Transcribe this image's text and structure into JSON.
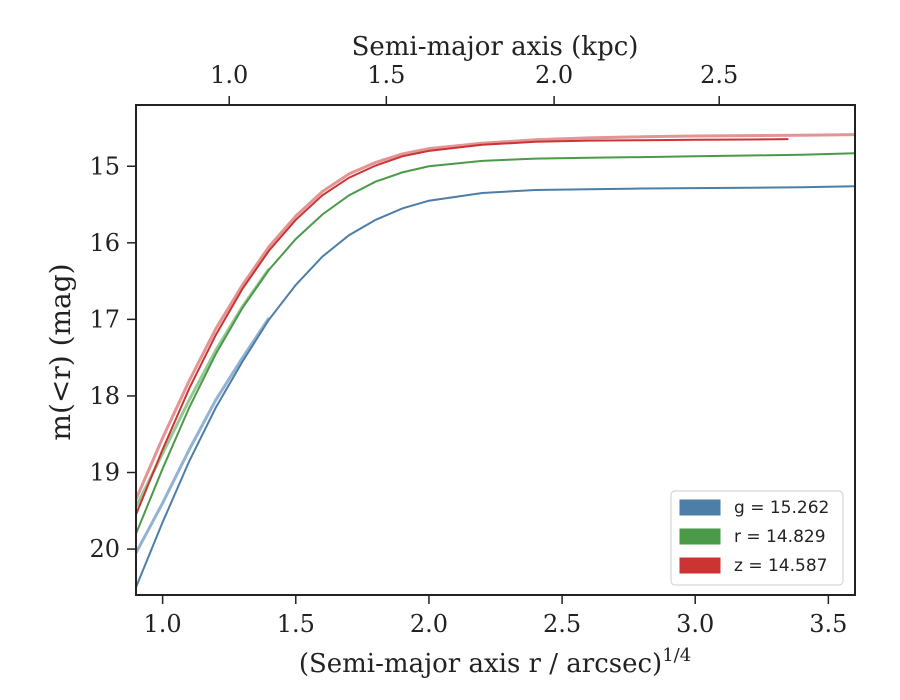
{
  "chart_data": {
    "type": "line",
    "xlabel": "(Semi-major axis r / arcsec)",
    "xlabel_superscript": "1/4",
    "x2label": "Semi-major axis (kpc)",
    "ylabel": "m(<r) (mag)",
    "xlim": [
      0.9,
      3.6
    ],
    "ylim": [
      20.6,
      14.2
    ],
    "y_inverted": true,
    "x2_ticks": [
      {
        "x": 1.25,
        "label": "1.0"
      },
      {
        "x": 1.84,
        "label": "1.5"
      },
      {
        "x": 2.47,
        "label": "2.0"
      },
      {
        "x": 3.09,
        "label": "2.5"
      }
    ],
    "xticks": [
      "1.0",
      "1.5",
      "2.0",
      "2.5",
      "3.0",
      "3.5"
    ],
    "yticks": [
      "15",
      "16",
      "17",
      "18",
      "19",
      "20"
    ],
    "legend_position": "lower-right",
    "grid": false,
    "series": [
      {
        "name": "g = 15.262",
        "color": "#4c7ea8",
        "band_color": "#88aacc",
        "x": [
          0.9,
          1.0,
          1.1,
          1.2,
          1.3,
          1.4,
          1.5,
          1.6,
          1.7,
          1.8,
          1.9,
          2.0,
          2.2,
          2.4,
          2.6,
          2.8,
          3.0,
          3.2,
          3.4,
          3.6
        ],
        "y": [
          20.5,
          19.65,
          18.85,
          18.15,
          17.55,
          17.0,
          16.55,
          16.18,
          15.9,
          15.7,
          15.55,
          15.45,
          15.35,
          15.31,
          15.3,
          15.29,
          15.285,
          15.28,
          15.275,
          15.262
        ],
        "band_x": [
          0.9,
          1.0,
          1.1,
          1.2,
          1.3,
          1.4
        ],
        "band_y": [
          20.05,
          19.4,
          18.7,
          18.05,
          17.5,
          16.98
        ]
      },
      {
        "name": "r = 14.829",
        "color": "#4a9a4a",
        "band_color": "#88c488",
        "x": [
          0.9,
          1.0,
          1.1,
          1.2,
          1.3,
          1.4,
          1.5,
          1.6,
          1.7,
          1.8,
          1.9,
          2.0,
          2.2,
          2.4,
          2.6,
          2.8,
          3.0,
          3.2,
          3.4,
          3.6
        ],
        "y": [
          19.8,
          18.95,
          18.15,
          17.45,
          16.85,
          16.35,
          15.95,
          15.63,
          15.38,
          15.2,
          15.08,
          15.0,
          14.93,
          14.9,
          14.89,
          14.88,
          14.87,
          14.86,
          14.85,
          14.829
        ],
        "band_x": [
          0.9,
          1.0,
          1.1,
          1.2,
          1.3,
          1.4
        ],
        "band_y": [
          19.45,
          18.75,
          18.05,
          17.4,
          16.83,
          16.34
        ]
      },
      {
        "name": "z = 14.587",
        "color": "#cc3333",
        "band_color": "#e08888",
        "x": [
          0.9,
          1.0,
          1.1,
          1.2,
          1.3,
          1.4,
          1.5,
          1.6,
          1.7,
          1.8,
          1.9,
          2.0,
          2.2,
          2.4,
          2.6,
          2.8,
          3.0,
          3.2,
          3.35
        ],
        "y": [
          19.55,
          18.7,
          17.9,
          17.2,
          16.6,
          16.1,
          15.7,
          15.38,
          15.15,
          14.99,
          14.87,
          14.8,
          14.72,
          14.68,
          14.665,
          14.66,
          14.655,
          14.65,
          14.645
        ],
        "band_x": [
          0.9,
          1.0,
          1.1,
          1.2,
          1.3,
          1.4,
          1.5,
          1.6,
          1.7,
          1.8,
          1.9,
          2.0,
          2.2,
          2.4,
          2.6,
          2.8,
          3.0,
          3.2,
          3.4,
          3.6
        ],
        "band_y": [
          19.35,
          18.55,
          17.8,
          17.12,
          16.55,
          16.05,
          15.65,
          15.33,
          15.1,
          14.95,
          14.84,
          14.77,
          14.7,
          14.655,
          14.63,
          14.615,
          14.605,
          14.6,
          14.595,
          14.587
        ]
      }
    ]
  }
}
